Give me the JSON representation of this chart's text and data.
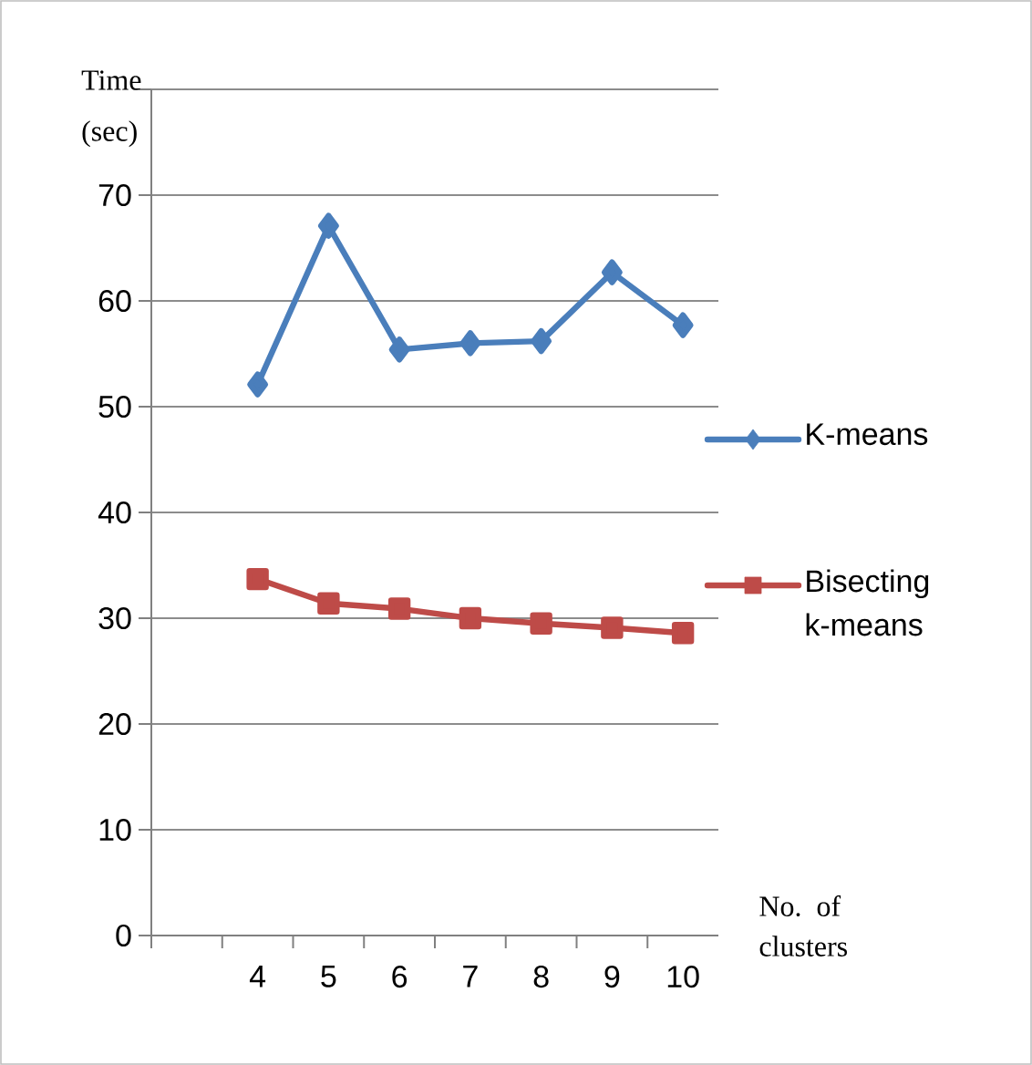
{
  "chart_data": {
    "type": "line",
    "xlabel": "No. of clusters",
    "ylabel": "Time (sec)",
    "categories": [
      null,
      "4",
      "5",
      "6",
      "7",
      "8",
      "9",
      "10"
    ],
    "series": [
      {
        "name": "K-means",
        "color": "#4a7ebb",
        "marker": "diamond",
        "values": [
          null,
          52.1,
          67.1,
          55.4,
          56.0,
          56.2,
          62.7,
          57.7
        ]
      },
      {
        "name": "Bisecting k-means",
        "color": "#be4b48",
        "marker": "square",
        "values": [
          null,
          33.7,
          31.4,
          30.9,
          30.0,
          29.5,
          29.1,
          28.6
        ]
      }
    ],
    "ylim": [
      0,
      80
    ],
    "yticks": [
      0,
      10,
      20,
      30,
      40,
      50,
      60,
      70,
      {
        "value": 80,
        "label": null
      }
    ],
    "grid": "y",
    "legend": "right"
  }
}
